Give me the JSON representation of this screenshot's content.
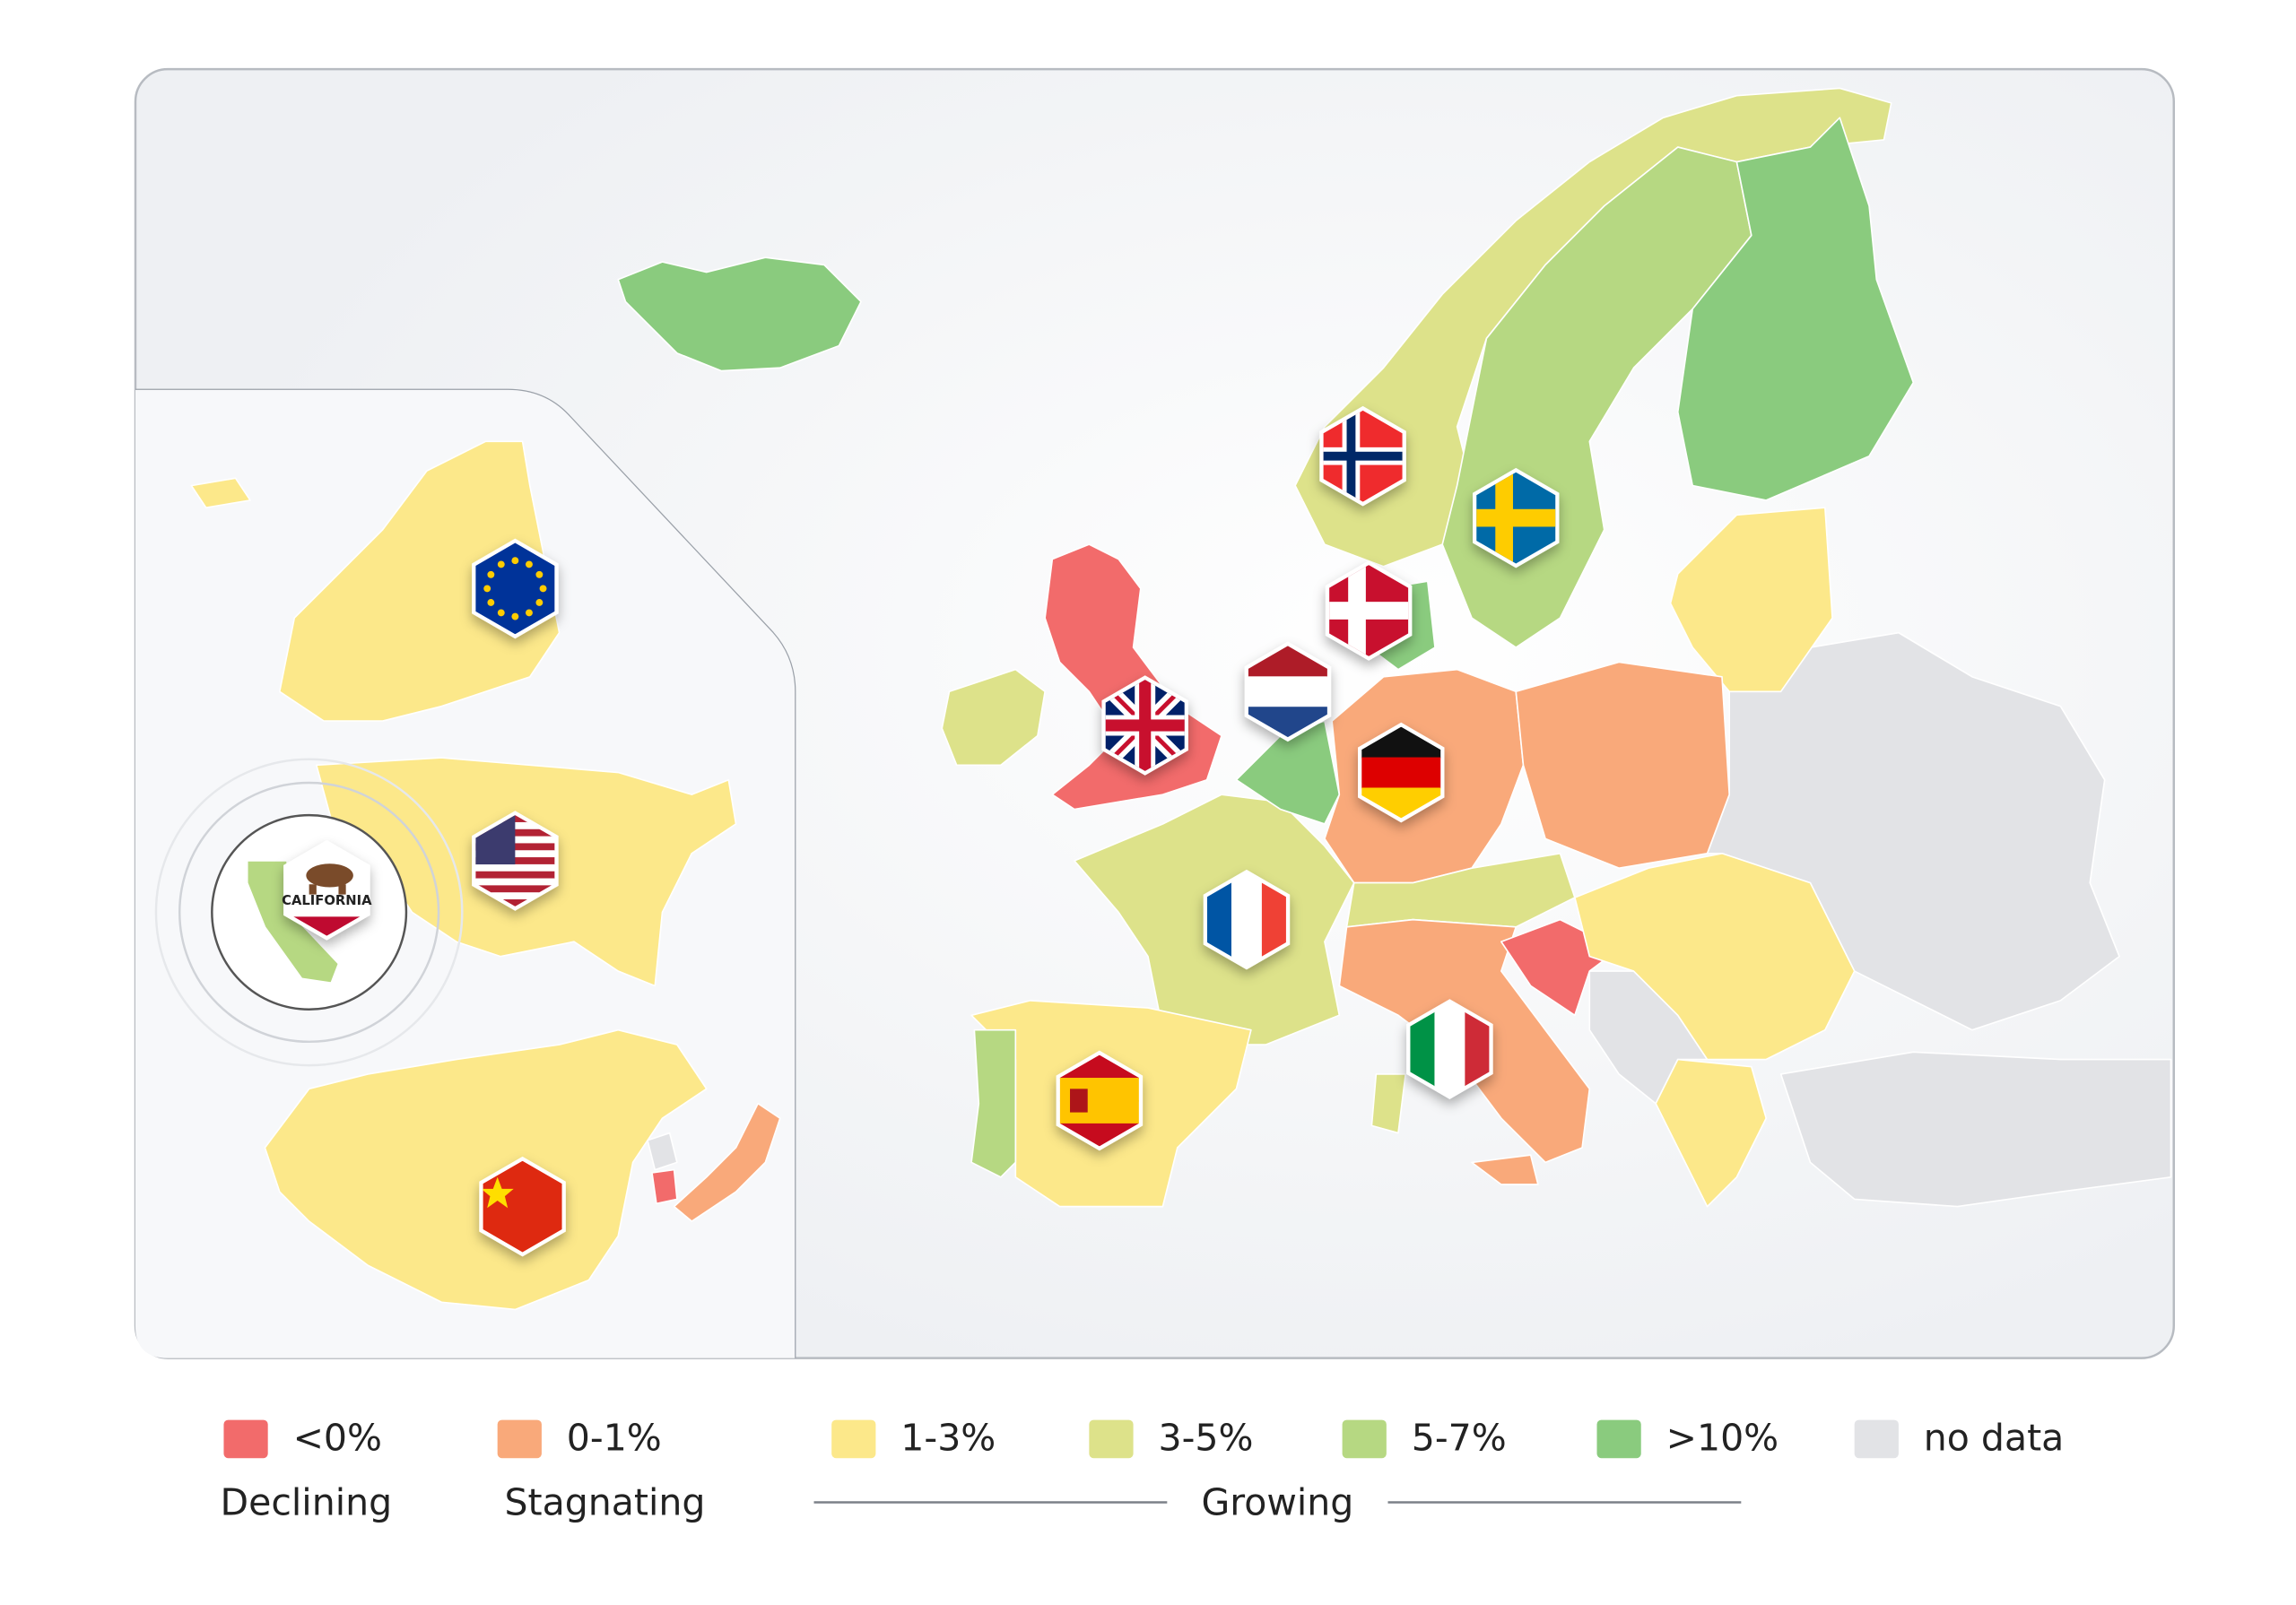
{
  "legend": {
    "items": [
      {
        "label": "<0%",
        "color": "#f26b6b"
      },
      {
        "label": "0-1%",
        "color": "#f9a97a"
      },
      {
        "label": "1-3%",
        "color": "#fce88a"
      },
      {
        "label": "3-5%",
        "color": "#dde28a"
      },
      {
        "label": "5-7%",
        "color": "#b6d882"
      },
      {
        "label": ">10%",
        "color": "#8acb7e"
      },
      {
        "label": "no data",
        "color": "#e2e3e6"
      }
    ],
    "groups": [
      "Declining",
      "Stagnating",
      "Growing"
    ]
  },
  "inset": {
    "badge_label": "CALIFORNIA"
  }
}
